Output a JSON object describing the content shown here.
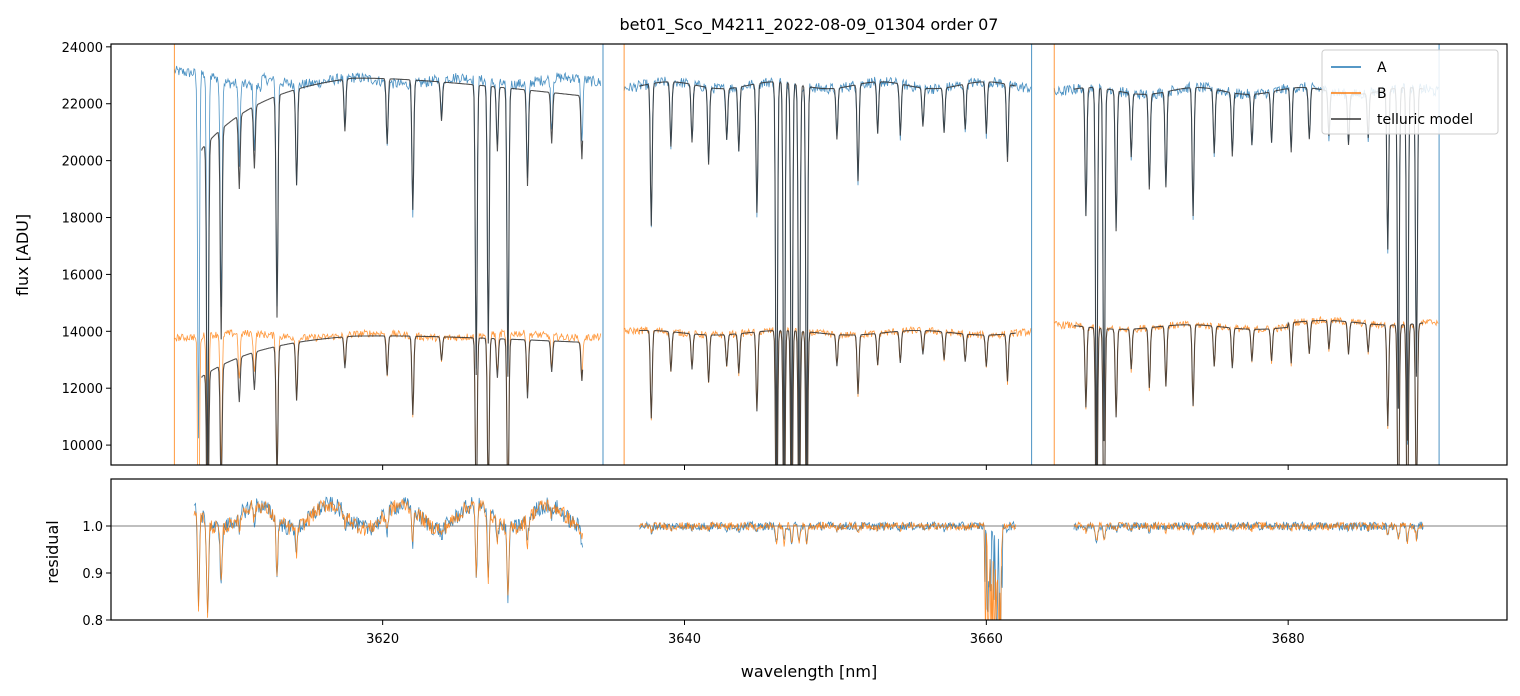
{
  "colors": {
    "series_a": "#1f77b4",
    "series_b": "#ff7f0e",
    "telluric": "#333333",
    "grid_line": "#555555"
  },
  "chart_data": [
    {
      "panel": "top",
      "type": "line",
      "title": "bet01_Sco_M4211_2022-08-09_01304  order 07",
      "xlabel": "",
      "ylabel": "flux [ADU]",
      "xlim": [
        3602,
        3694.5
      ],
      "ylim": [
        9300,
        24100
      ],
      "yticks": [
        10000,
        12000,
        14000,
        16000,
        18000,
        20000,
        22000,
        24000
      ],
      "ytick_labels": [
        "10000",
        "12000",
        "14000",
        "16000",
        "18000",
        "20000",
        "22000",
        "24000"
      ],
      "xticks": [
        3620,
        3640,
        3660,
        3680
      ],
      "legend": {
        "position": "top-right",
        "entries": [
          "A",
          "B",
          "telluric model"
        ]
      },
      "segments": [
        {
          "range": [
            3606.2,
            3634.5
          ],
          "a_continuum": 22800,
          "b_continuum": 13850,
          "telluric_offset_a": -900,
          "telluric_offset_b": -550
        },
        {
          "range": [
            3636.0,
            3663.0
          ],
          "a_continuum": 22650,
          "b_continuum": 13950,
          "telluric_offset_a": 0,
          "telluric_offset_b": 0
        },
        {
          "range": [
            3664.5,
            3690.0
          ],
          "a_continuum": 22450,
          "b_continuum": 14150,
          "telluric_offset_a": 0,
          "telluric_offset_b": 0
        }
      ],
      "telluric_ranges": [
        [
          3608,
          3633.3
        ],
        [
          3637,
          3662
        ],
        [
          3665.8,
          3689
        ]
      ],
      "absorption_lines": [
        {
          "x": 3607.8,
          "depth": 0.55
        },
        {
          "x": 3608.4,
          "depth": 0.6
        },
        {
          "x": 3609.3,
          "depth": 0.35
        },
        {
          "x": 3610.5,
          "depth": 0.12
        },
        {
          "x": 3611.5,
          "depth": 0.1
        },
        {
          "x": 3613.0,
          "depth": 0.35
        },
        {
          "x": 3614.3,
          "depth": 0.15
        },
        {
          "x": 3617.5,
          "depth": 0.08
        },
        {
          "x": 3620.3,
          "depth": 0.1
        },
        {
          "x": 3622.0,
          "depth": 0.2
        },
        {
          "x": 3623.9,
          "depth": 0.06
        },
        {
          "x": 3626.2,
          "depth": 0.45
        },
        {
          "x": 3627.0,
          "depth": 0.4
        },
        {
          "x": 3627.6,
          "depth": 0.1
        },
        {
          "x": 3628.3,
          "depth": 0.45
        },
        {
          "x": 3629.6,
          "depth": 0.15
        },
        {
          "x": 3631.2,
          "depth": 0.08
        },
        {
          "x": 3633.2,
          "depth": 0.1
        },
        {
          "x": 3637.8,
          "depth": 0.22
        },
        {
          "x": 3639.1,
          "depth": 0.1
        },
        {
          "x": 3640.5,
          "depth": 0.09
        },
        {
          "x": 3641.6,
          "depth": 0.12
        },
        {
          "x": 3642.8,
          "depth": 0.08
        },
        {
          "x": 3643.6,
          "depth": 0.1
        },
        {
          "x": 3644.8,
          "depth": 0.2
        },
        {
          "x": 3646.1,
          "depth": 0.6
        },
        {
          "x": 3646.6,
          "depth": 0.6
        },
        {
          "x": 3647.1,
          "depth": 0.6
        },
        {
          "x": 3647.6,
          "depth": 0.6
        },
        {
          "x": 3648.1,
          "depth": 0.6
        },
        {
          "x": 3650.1,
          "depth": 0.08
        },
        {
          "x": 3651.5,
          "depth": 0.15
        },
        {
          "x": 3652.8,
          "depth": 0.08
        },
        {
          "x": 3654.3,
          "depth": 0.08
        },
        {
          "x": 3655.8,
          "depth": 0.06
        },
        {
          "x": 3657.2,
          "depth": 0.07
        },
        {
          "x": 3658.6,
          "depth": 0.07
        },
        {
          "x": 3660.0,
          "depth": 0.08
        },
        {
          "x": 3661.4,
          "depth": 0.12
        },
        {
          "x": 3666.6,
          "depth": 0.2
        },
        {
          "x": 3667.3,
          "depth": 0.6
        },
        {
          "x": 3667.8,
          "depth": 0.55
        },
        {
          "x": 3668.6,
          "depth": 0.22
        },
        {
          "x": 3669.6,
          "depth": 0.1
        },
        {
          "x": 3670.8,
          "depth": 0.15
        },
        {
          "x": 3671.9,
          "depth": 0.15
        },
        {
          "x": 3673.7,
          "depth": 0.2
        },
        {
          "x": 3675.1,
          "depth": 0.1
        },
        {
          "x": 3676.3,
          "depth": 0.1
        },
        {
          "x": 3677.6,
          "depth": 0.08
        },
        {
          "x": 3678.9,
          "depth": 0.08
        },
        {
          "x": 3680.2,
          "depth": 0.1
        },
        {
          "x": 3681.4,
          "depth": 0.08
        },
        {
          "x": 3682.7,
          "depth": 0.07
        },
        {
          "x": 3684.0,
          "depth": 0.08
        },
        {
          "x": 3685.3,
          "depth": 0.07
        },
        {
          "x": 3686.6,
          "depth": 0.25
        },
        {
          "x": 3687.3,
          "depth": 0.5
        },
        {
          "x": 3687.9,
          "depth": 0.55
        },
        {
          "x": 3688.5,
          "depth": 0.45
        }
      ],
      "spikes": [
        3606.2,
        3634.6,
        3636.0,
        3663.0,
        3664.5,
        3690.0
      ]
    },
    {
      "panel": "bottom",
      "type": "line",
      "title": "",
      "xlabel": "wavelength [nm]",
      "ylabel": "residual",
      "xlim": [
        3602,
        3694.5
      ],
      "ylim": [
        0.8,
        1.1
      ],
      "yticks": [
        0.8,
        0.9,
        1.0
      ],
      "ytick_labels": [
        "0.8",
        "0.9",
        "1.0"
      ],
      "xticks": [
        3620,
        3640,
        3660,
        3680
      ],
      "xtick_labels": [
        "3620",
        "3640",
        "3660",
        "3680"
      ],
      "reference_line": 1.0,
      "residual_ranges": [
        [
          3607.5,
          3633.3
        ],
        [
          3637,
          3662
        ],
        [
          3665.8,
          3689
        ]
      ]
    }
  ]
}
